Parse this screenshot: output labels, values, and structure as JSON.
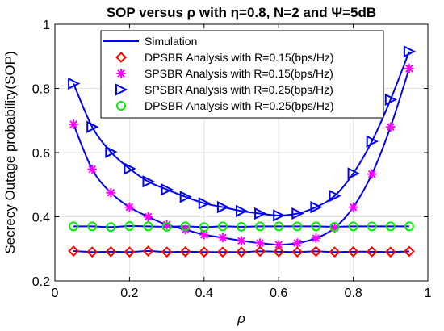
{
  "chart_data": {
    "type": "line",
    "title": "SOP versus ρ with η=0.8, N=2 and Ψ=5dB",
    "xlabel": "ρ",
    "ylabel": "Secrecy Outage probability(SOP)",
    "xlim": [
      0,
      1
    ],
    "ylim": [
      0.2,
      1
    ],
    "xticks": [
      0,
      0.2,
      0.4,
      0.6,
      0.8,
      1
    ],
    "yticks": [
      0.2,
      0.4,
      0.6,
      0.8,
      1
    ],
    "xtick_labels": [
      "0",
      "0.2",
      "0.4",
      "0.6",
      "0.8",
      "1"
    ],
    "ytick_labels": [
      "0.2",
      "0.4",
      "0.6",
      "0.8",
      "1"
    ],
    "grid": true,
    "legend_position": "top-center",
    "x": [
      0.05,
      0.1,
      0.15,
      0.2,
      0.25,
      0.3,
      0.35,
      0.4,
      0.45,
      0.5,
      0.55,
      0.6,
      0.65,
      0.7,
      0.75,
      0.8,
      0.85,
      0.9,
      0.95
    ],
    "legend": [
      {
        "label": "Simulation",
        "marker": "line",
        "color": "#0000ee"
      },
      {
        "label": "DPSBR Analysis with R=0.15(bps/Hz)",
        "marker": "diamond",
        "color": "#ff0000"
      },
      {
        "label": "SPSBR Analysis with R=0.15(bps/Hz)",
        "marker": "asterisk",
        "color": "#ff00ff"
      },
      {
        "label": "SPSBR Analysis with R=0.25(bps/Hz)",
        "marker": "triangle-right",
        "color": "#0000ee"
      },
      {
        "label": "DPSBR Analysis with R=0.25(bps/Hz)",
        "marker": "circle",
        "color": "#00ee00"
      }
    ],
    "series": [
      {
        "name": "SPSBR Analysis with R=0.25(bps/Hz)",
        "marker": "triangle-right",
        "color": "#0000ee",
        "values": [
          0.815,
          0.68,
          0.602,
          0.55,
          0.51,
          0.485,
          0.462,
          0.442,
          0.43,
          0.418,
          0.41,
          0.404,
          0.41,
          0.43,
          0.465,
          0.535,
          0.635,
          0.765,
          0.915
        ]
      },
      {
        "name": "SPSBR Analysis with R=0.15(bps/Hz)",
        "marker": "asterisk",
        "color": "#ff00ff",
        "values": [
          0.688,
          0.548,
          0.475,
          0.43,
          0.4,
          0.375,
          0.36,
          0.344,
          0.335,
          0.325,
          0.318,
          0.313,
          0.318,
          0.333,
          0.365,
          0.43,
          0.533,
          0.68,
          0.862
        ]
      },
      {
        "name": "DPSBR Analysis with R=0.25(bps/Hz)",
        "marker": "circle",
        "color": "#00ee00",
        "values": [
          0.37,
          0.37,
          0.368,
          0.371,
          0.37,
          0.369,
          0.37,
          0.368,
          0.37,
          0.369,
          0.37,
          0.37,
          0.37,
          0.37,
          0.369,
          0.37,
          0.37,
          0.37,
          0.37
        ]
      },
      {
        "name": "DPSBR Analysis with R=0.15(bps/Hz)",
        "marker": "diamond",
        "color": "#ff0000",
        "values": [
          0.293,
          0.29,
          0.291,
          0.29,
          0.293,
          0.29,
          0.291,
          0.29,
          0.29,
          0.29,
          0.292,
          0.291,
          0.29,
          0.292,
          0.29,
          0.291,
          0.291,
          0.29,
          0.292
        ]
      }
    ]
  }
}
